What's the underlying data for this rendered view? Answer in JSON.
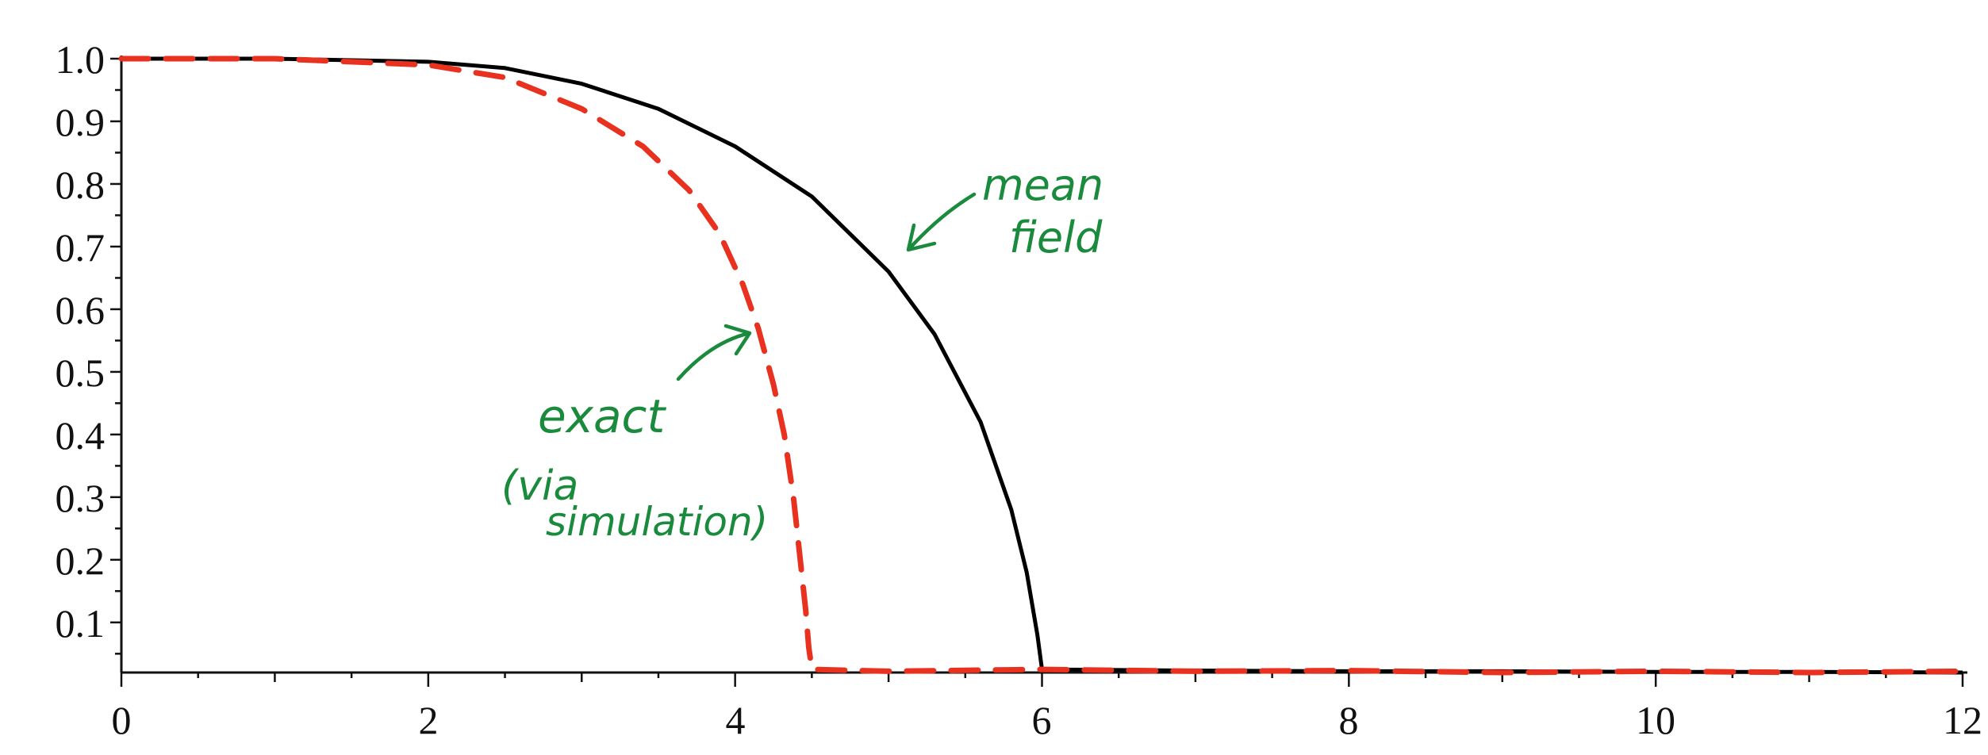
{
  "chart_data": {
    "type": "line",
    "title": "",
    "xlabel": "",
    "ylabel": "",
    "xlim": [
      0,
      12
    ],
    "ylim": [
      0.02,
      1.0
    ],
    "x_ticks": [
      "0",
      "2",
      "4",
      "6",
      "8",
      "10",
      "12"
    ],
    "y_ticks": [
      "0.1",
      "0.2",
      "0.3",
      "0.4",
      "0.5",
      "0.6",
      "0.7",
      "0.8",
      "0.9",
      "1.0"
    ],
    "grid": false,
    "series": [
      {
        "color": "#000000",
        "style": "solid",
        "x": [
          0,
          1,
          2,
          2.5,
          3,
          3.5,
          4,
          4.5,
          5,
          5.3,
          5.6,
          5.8,
          5.9,
          5.97,
          6.0,
          7,
          8,
          9,
          10,
          11,
          12
        ],
        "y": [
          1.0,
          1.0,
          0.995,
          0.985,
          0.96,
          0.92,
          0.86,
          0.78,
          0.66,
          0.56,
          0.42,
          0.28,
          0.18,
          0.08,
          0.025,
          0.023,
          0.022,
          0.022,
          0.021,
          0.021,
          0.02
        ]
      },
      {
        "color": "#e8311f",
        "style": "dashed",
        "x": [
          0,
          1,
          2,
          2.5,
          3,
          3.4,
          3.7,
          3.9,
          4.05,
          4.15,
          4.25,
          4.32,
          4.38,
          4.42,
          4.46,
          4.48,
          4.5,
          5,
          6,
          7,
          8,
          9,
          10,
          11,
          12
        ],
        "y": [
          1.0,
          1.0,
          0.99,
          0.97,
          0.92,
          0.86,
          0.79,
          0.72,
          0.64,
          0.57,
          0.48,
          0.4,
          0.3,
          0.21,
          0.12,
          0.06,
          0.025,
          0.022,
          0.025,
          0.022,
          0.023,
          0.02,
          0.022,
          0.02,
          0.022
        ]
      }
    ],
    "annotations": {
      "mean_field": [
        "mean",
        "field"
      ],
      "exact": [
        "exact",
        "(via",
        "simulation)"
      ]
    }
  },
  "colors": {
    "axis": "#111111",
    "mean_field_line": "#000000",
    "exact_line": "#e8311f",
    "annotation": "#1a8a3c"
  }
}
